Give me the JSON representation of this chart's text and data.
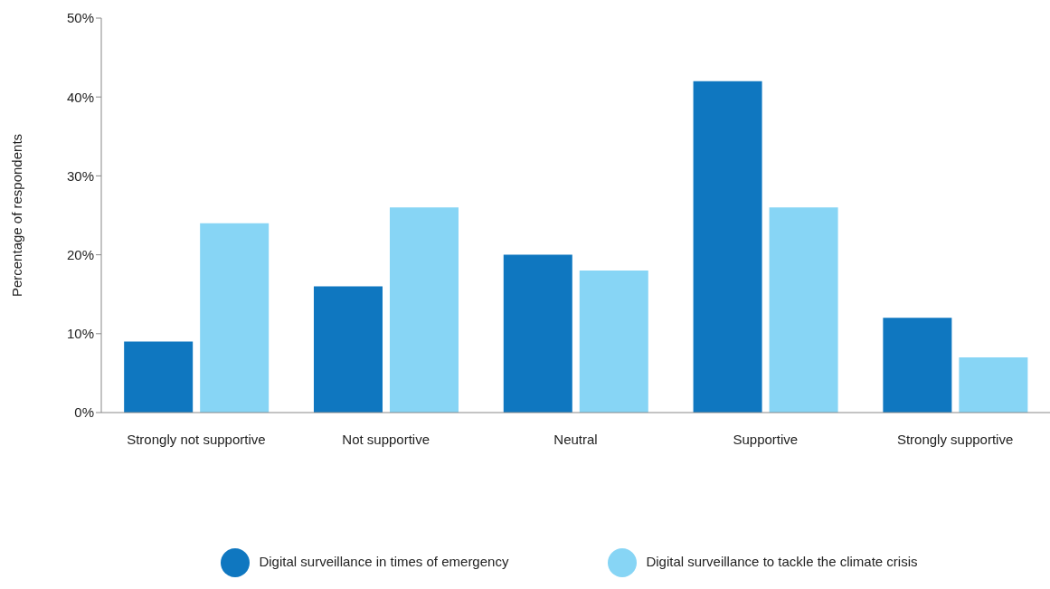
{
  "chart_data": {
    "type": "bar",
    "ylabel": "Percentage of respondents",
    "categories": [
      "Strongly not supportive",
      "Not supportive",
      "Neutral",
      "Supportive",
      "Strongly supportive"
    ],
    "series": [
      {
        "name": "Digital surveillance in times of emergency",
        "color": "#0f77c0",
        "values": [
          9,
          16,
          20,
          42,
          12
        ]
      },
      {
        "name": "Digital surveillance to tackle the climate crisis",
        "color": "#87d5f5",
        "values": [
          24,
          26,
          18,
          26,
          7
        ]
      }
    ],
    "ylim": [
      0,
      50
    ],
    "yticks": [
      {
        "value": 0,
        "label": "0%"
      },
      {
        "value": 10,
        "label": "10%"
      },
      {
        "value": 20,
        "label": "20%"
      },
      {
        "value": 30,
        "label": "30%"
      },
      {
        "value": 40,
        "label": "40%"
      },
      {
        "value": 50,
        "label": "50%"
      }
    ],
    "grid": false,
    "legend": "bottom"
  }
}
